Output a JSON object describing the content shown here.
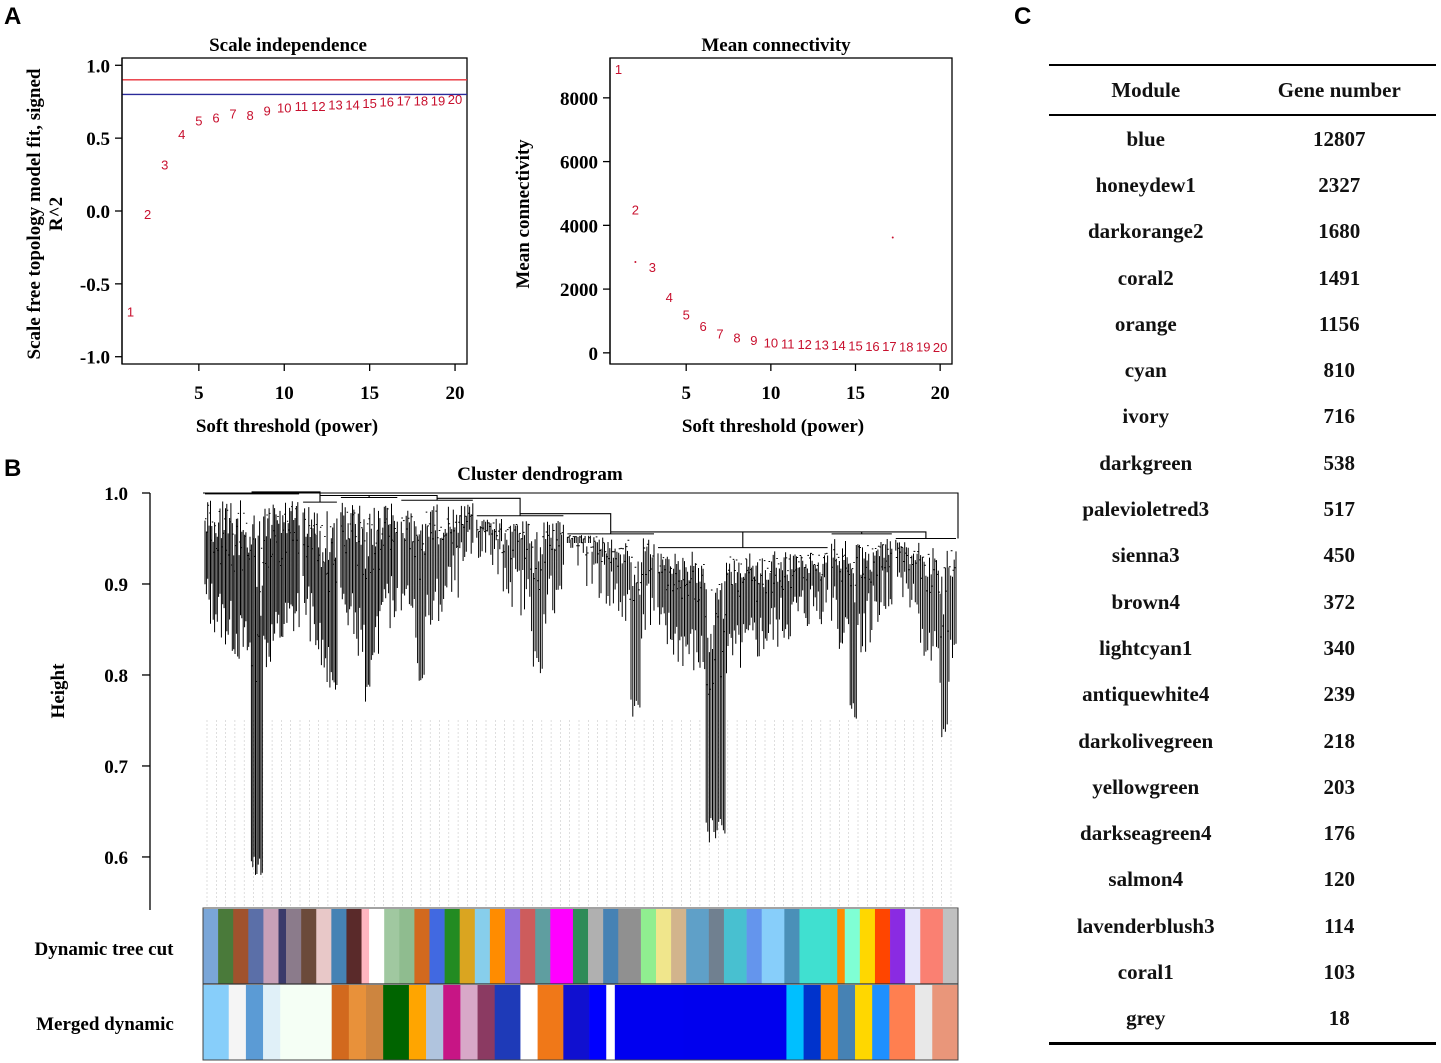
{
  "panel_labels": {
    "a": "A",
    "b": "B",
    "c": "C"
  },
  "chart_data": [
    {
      "id": "scale_independence",
      "type": "scatter",
      "title": "Scale independence",
      "xlabel": "Soft threshold (power)",
      "ylabel_lines": [
        "Scale free topology model fit, signed",
        "R^2"
      ],
      "xlim": [
        0.5,
        20.7
      ],
      "ylim": [
        -1.05,
        1.05
      ],
      "xticks": [
        5,
        10,
        15,
        20
      ],
      "yticks": [
        -1.0,
        -0.5,
        0.0,
        0.5,
        1.0
      ],
      "ytick_labels": [
        "-1.0",
        "-0.5",
        "0.0",
        "0.5",
        "1.0"
      ],
      "x": [
        1,
        2,
        3,
        4,
        5,
        6,
        7,
        8,
        9,
        10,
        11,
        12,
        13,
        14,
        15,
        16,
        17,
        18,
        19,
        20
      ],
      "y": [
        -0.69,
        -0.02,
        0.32,
        0.53,
        0.62,
        0.64,
        0.67,
        0.66,
        0.69,
        0.71,
        0.72,
        0.72,
        0.73,
        0.73,
        0.74,
        0.75,
        0.76,
        0.76,
        0.76,
        0.77
      ],
      "labels": [
        "1",
        "2",
        "3",
        "4",
        "5",
        "6",
        "7",
        "8",
        "9",
        "10",
        "11",
        "12",
        "13",
        "14",
        "15",
        "16",
        "17",
        "18",
        "19",
        "20"
      ],
      "hlines": [
        {
          "y": 0.9,
          "color": "#e8303a"
        },
        {
          "y": 0.8,
          "color": "#2a2a9a"
        }
      ],
      "label_color": "#c8102e"
    },
    {
      "id": "mean_connectivity",
      "type": "scatter",
      "title": "Mean connectivity",
      "xlabel": "Soft threshold (power)",
      "ylabel": "Mean connectivity",
      "xlim": [
        0.5,
        20.7
      ],
      "ylim": [
        -350,
        9250
      ],
      "xticks": [
        5,
        10,
        15,
        20
      ],
      "yticks": [
        0,
        2000,
        4000,
        6000,
        8000
      ],
      "x": [
        1,
        2,
        3,
        4,
        5,
        6,
        7,
        8,
        9,
        10,
        11,
        12,
        13,
        14,
        15,
        16,
        17,
        18,
        19,
        20
      ],
      "y": [
        8900,
        4500,
        2700,
        1750,
        1200,
        850,
        600,
        480,
        400,
        330,
        300,
        280,
        260,
        245,
        230,
        220,
        210,
        200,
        195,
        190
      ],
      "labels": [
        "1",
        "2",
        "3",
        "4",
        "5",
        "6",
        "7",
        "8",
        "9",
        "10",
        "11",
        "12",
        "13",
        "14",
        "15",
        "16",
        "17",
        "18",
        "19",
        "20"
      ],
      "extra_points": [
        {
          "x": 2.0,
          "y": 2850
        },
        {
          "x": 17.2,
          "y": 3620
        }
      ],
      "label_color": "#c8102e"
    },
    {
      "id": "cluster_dendrogram",
      "type": "dendrogram",
      "title": "Cluster dendrogram",
      "ylabel": "Height",
      "ylim": [
        0.545,
        1.0
      ],
      "yticks": [
        0.6,
        0.7,
        0.8,
        0.9,
        1.0
      ],
      "ytick_labels": [
        "0.6",
        "0.7",
        "0.8",
        "0.9",
        "1.0"
      ],
      "clusters": [
        {
          "start": 0.0,
          "end": 0.13,
          "top": 0.999,
          "min": 0.79,
          "deep": 0.58,
          "count": 70
        },
        {
          "start": 0.13,
          "end": 0.18,
          "top": 0.99,
          "min": 0.76,
          "deep": 0.78,
          "count": 25
        },
        {
          "start": 0.18,
          "end": 0.26,
          "top": 0.995,
          "min": 0.8,
          "deep": 0.76,
          "count": 40
        },
        {
          "start": 0.26,
          "end": 0.36,
          "top": 0.992,
          "min": 0.82,
          "deep": 0.79,
          "count": 45
        },
        {
          "start": 0.36,
          "end": 0.48,
          "top": 0.975,
          "min": 0.84,
          "deep": 0.8,
          "count": 50
        },
        {
          "start": 0.48,
          "end": 0.6,
          "top": 0.955,
          "min": 0.83,
          "deep": 0.75,
          "count": 50
        },
        {
          "start": 0.6,
          "end": 0.83,
          "top": 0.94,
          "min": 0.78,
          "deep": 0.615,
          "count": 110
        },
        {
          "start": 0.83,
          "end": 0.915,
          "top": 0.955,
          "min": 0.8,
          "deep": 0.75,
          "count": 40
        },
        {
          "start": 0.915,
          "end": 1.0,
          "top": 0.95,
          "min": 0.78,
          "deep": 0.73,
          "count": 35
        }
      ],
      "color_bar_labels": [
        "Dynamic tree cut",
        "Merged dynamic"
      ],
      "dynamic_tree_cut": [
        {
          "w": 2,
          "c": "#7aa6d8"
        },
        {
          "w": 2,
          "c": "#4a7a3a"
        },
        {
          "w": 2,
          "c": "#a0522d"
        },
        {
          "w": 2,
          "c": "#5b6fa8"
        },
        {
          "w": 2,
          "c": "#c8a0b8"
        },
        {
          "w": 1,
          "c": "#3a3a6a"
        },
        {
          "w": 2,
          "c": "#8b7b8b"
        },
        {
          "w": 2,
          "c": "#6b4a3a"
        },
        {
          "w": 2,
          "c": "#e8c8c8"
        },
        {
          "w": 2,
          "c": "#4682b4"
        },
        {
          "w": 2,
          "c": "#5a2a2a"
        },
        {
          "w": 1,
          "c": "#ffb6c1"
        },
        {
          "w": 2,
          "c": "#ffffff"
        },
        {
          "w": 2,
          "c": "#a0c8a0"
        },
        {
          "w": 2,
          "c": "#8fbc8f"
        },
        {
          "w": 2,
          "c": "#d2691e"
        },
        {
          "w": 2,
          "c": "#4169e1"
        },
        {
          "w": 2,
          "c": "#228b22"
        },
        {
          "w": 2,
          "c": "#daa520"
        },
        {
          "w": 2,
          "c": "#87ceeb"
        },
        {
          "w": 2,
          "c": "#ff8c00"
        },
        {
          "w": 2,
          "c": "#9370db"
        },
        {
          "w": 2,
          "c": "#cd5c5c"
        },
        {
          "w": 2,
          "c": "#5f9ea0"
        },
        {
          "w": 3,
          "c": "#ff00ff"
        },
        {
          "w": 2,
          "c": "#2e8b57"
        },
        {
          "w": 2,
          "c": "#b0b0b0"
        },
        {
          "w": 2,
          "c": "#4682b4"
        },
        {
          "w": 3,
          "c": "#909090"
        },
        {
          "w": 2,
          "c": "#90ee90"
        },
        {
          "w": 2,
          "c": "#f0e68c"
        },
        {
          "w": 2,
          "c": "#d2b48c"
        },
        {
          "w": 3,
          "c": "#5fa0c8"
        },
        {
          "w": 2,
          "c": "#708090"
        },
        {
          "w": 3,
          "c": "#48c0d0"
        },
        {
          "w": 2,
          "c": "#6495ed"
        },
        {
          "w": 3,
          "c": "#87cefa"
        },
        {
          "w": 2,
          "c": "#4a90b8"
        },
        {
          "w": 5,
          "c": "#40e0d0"
        },
        {
          "w": 1,
          "c": "#ff8c00"
        },
        {
          "w": 2,
          "c": "#7fffd4"
        },
        {
          "w": 2,
          "c": "#ffd700"
        },
        {
          "w": 2,
          "c": "#ff4500"
        },
        {
          "w": 2,
          "c": "#8a2be2"
        },
        {
          "w": 2,
          "c": "#e6e6fa"
        },
        {
          "w": 3,
          "c": "#fa8072"
        },
        {
          "w": 2,
          "c": "#c0c0c0"
        }
      ],
      "merged_dynamic": [
        {
          "w": 3,
          "c": "#87cefa"
        },
        {
          "w": 2,
          "c": "#f5f5f5"
        },
        {
          "w": 2,
          "c": "#5b9bd5"
        },
        {
          "w": 2,
          "c": "#e0f0f8"
        },
        {
          "w": 6,
          "c": "#f5fff5"
        },
        {
          "w": 2,
          "c": "#d2691e"
        },
        {
          "w": 2,
          "c": "#e8913a"
        },
        {
          "w": 2,
          "c": "#cd853f"
        },
        {
          "w": 3,
          "c": "#006400"
        },
        {
          "w": 2,
          "c": "#ffa500"
        },
        {
          "w": 2,
          "c": "#b0c4de"
        },
        {
          "w": 2,
          "c": "#c71585"
        },
        {
          "w": 2,
          "c": "#d8a8c8"
        },
        {
          "w": 2,
          "c": "#8b3a62"
        },
        {
          "w": 3,
          "c": "#1e3ab8"
        },
        {
          "w": 2,
          "c": "#ffffff"
        },
        {
          "w": 3,
          "c": "#f07818"
        },
        {
          "w": 3,
          "c": "#1010d0"
        },
        {
          "w": 2,
          "c": "#0000ff"
        },
        {
          "w": 1,
          "c": "#ffffff"
        },
        {
          "w": 8,
          "c": "#0000f0"
        },
        {
          "w": 12,
          "c": "#0000ee"
        },
        {
          "w": 2,
          "c": "#00bfff"
        },
        {
          "w": 2,
          "c": "#0033cc"
        },
        {
          "w": 2,
          "c": "#ff8c00"
        },
        {
          "w": 2,
          "c": "#4682b4"
        },
        {
          "w": 2,
          "c": "#ffd700"
        },
        {
          "w": 2,
          "c": "#1e90ff"
        },
        {
          "w": 3,
          "c": "#ff7f50"
        },
        {
          "w": 2,
          "c": "#e8e8e8"
        },
        {
          "w": 3,
          "c": "#e9967a"
        }
      ]
    }
  ],
  "table": {
    "headers": [
      "Module",
      "Gene number"
    ],
    "rows": [
      [
        "blue",
        "12807"
      ],
      [
        "honeydew1",
        "2327"
      ],
      [
        "darkorange2",
        "1680"
      ],
      [
        "coral2",
        "1491"
      ],
      [
        "orange",
        "1156"
      ],
      [
        "cyan",
        "810"
      ],
      [
        "ivory",
        "716"
      ],
      [
        "darkgreen",
        "538"
      ],
      [
        "palevioletred3",
        "517"
      ],
      [
        "sienna3",
        "450"
      ],
      [
        "brown4",
        "372"
      ],
      [
        "lightcyan1",
        "340"
      ],
      [
        "antiquewhite4",
        "239"
      ],
      [
        "darkolivegreen",
        "218"
      ],
      [
        "yellowgreen",
        "203"
      ],
      [
        "darkseagreen4",
        "176"
      ],
      [
        "salmon4",
        "120"
      ],
      [
        "lavenderblush3",
        "114"
      ],
      [
        "coral1",
        "103"
      ],
      [
        "grey",
        "18"
      ]
    ]
  }
}
